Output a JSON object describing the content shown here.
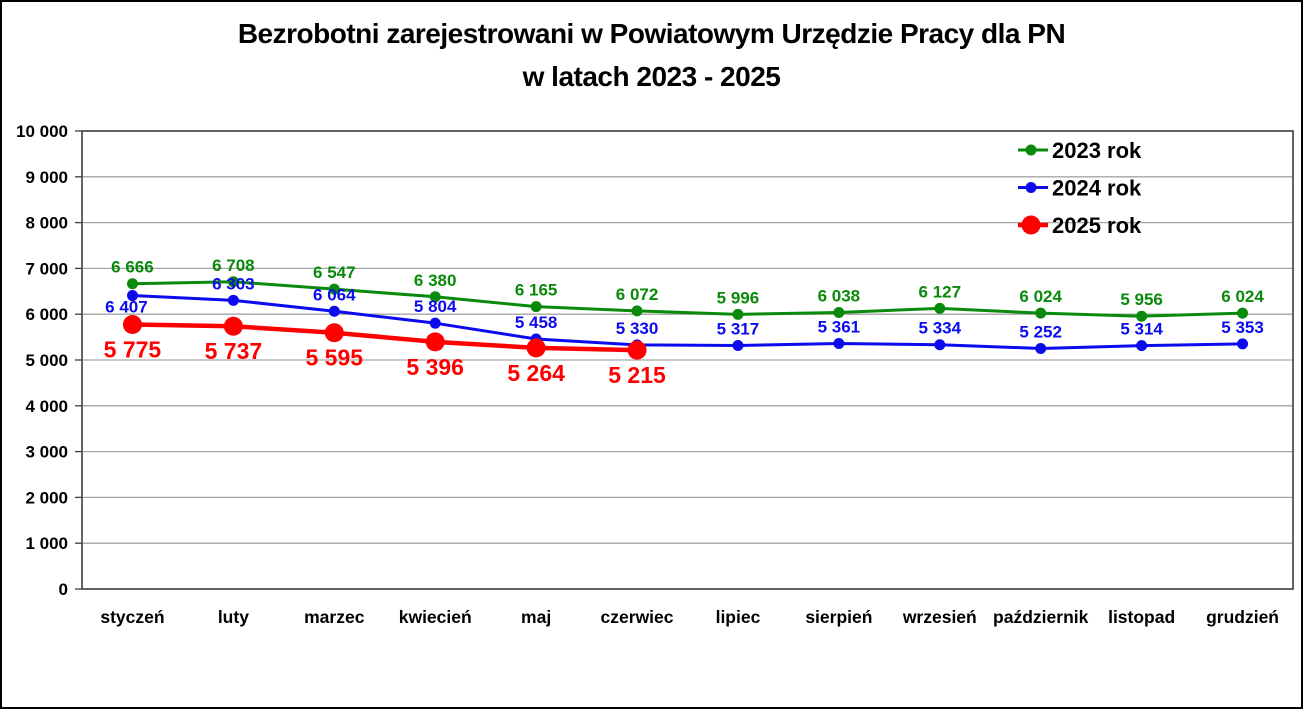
{
  "chart_data": {
    "type": "line",
    "title_line1": "Bezrobotni zarejestrowani w Powiatowym Urzędzie Pracy dla PN",
    "title_line2": "w latach 2023 - 2025",
    "categories": [
      "styczeń",
      "luty",
      "marzec",
      "kwiecień",
      "maj",
      "czerwiec",
      "lipiec",
      "sierpień",
      "wrzesień",
      "październik",
      "listopad",
      "grudzień"
    ],
    "series": [
      {
        "name": "2023 rok",
        "color": "#0a8a0a",
        "values": [
          6666,
          6708,
          6547,
          6380,
          6165,
          6072,
          5996,
          6038,
          6127,
          6024,
          5956,
          6024
        ]
      },
      {
        "name": "2024 rok",
        "color": "#0b0bee",
        "values": [
          6407,
          6303,
          6064,
          5804,
          5458,
          5330,
          5317,
          5361,
          5334,
          5252,
          5314,
          5353
        ]
      },
      {
        "name": "2025 rok",
        "color": "#ff0000",
        "values": [
          5775,
          5737,
          5595,
          5396,
          5264,
          5215
        ]
      }
    ],
    "ylim": [
      0,
      10000
    ],
    "ytick_interval": 1000,
    "ytick_labels": [
      "0",
      "1 000",
      "2 000",
      "3 000",
      "4 000",
      "5 000",
      "6 000",
      "7 000",
      "8 000",
      "9 000",
      "10 000"
    ],
    "xlabel": "",
    "ylabel": "",
    "grid": true,
    "gridline_color": "#a6a6a6",
    "axis_frame_color": "#3f3f3f",
    "text_color": "#000000",
    "legend_position": "top-right",
    "legend_entries": [
      "2023 rok",
      "2024 rok",
      "2025 rok"
    ],
    "data_labels_shown": true
  }
}
